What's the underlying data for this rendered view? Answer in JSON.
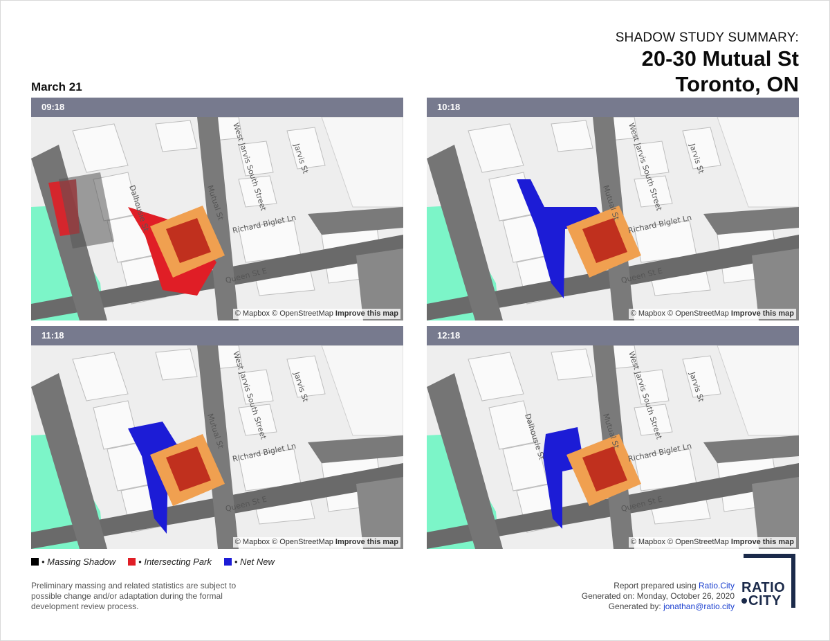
{
  "header": {
    "kicker": "SHADOW STUDY SUMMARY:",
    "title_line1": "20-30 Mutual St",
    "title_line2": "Toronto, ON"
  },
  "date": "March 21",
  "panels": [
    {
      "time": "09:18"
    },
    {
      "time": "10:18"
    },
    {
      "time": "11:18"
    },
    {
      "time": "12:18"
    }
  ],
  "map": {
    "streets": {
      "jarvis": "Jarvis St",
      "west_jarvis": "West Jarvis South Street",
      "mutual": "Mutual St",
      "dalhousie": "Dalhousie St",
      "richard": "Richard Biglet Ln",
      "queen": "Queen St E"
    },
    "attribution": {
      "mapbox": "© Mapbox",
      "osm": "© OpenStreetMap",
      "improve": "Improve this map"
    },
    "colors": {
      "park": "#7cf5c8",
      "building_massing": "#f0a050",
      "building_core": "#c0301e",
      "shadow": "#555555",
      "intersecting_park": "#e01e26",
      "net_new": "#1c1cd6"
    }
  },
  "legend": {
    "items": [
      {
        "label": "• Massing Shadow",
        "color": "#000000"
      },
      {
        "label": "• Intersecting Park",
        "color": "#e01e26"
      },
      {
        "label": "• Net New",
        "color": "#1c1cd6"
      }
    ]
  },
  "disclaimer": "Preliminary massing and related statistics are subject to possible change and/or adaptation during the formal development review process.",
  "report": {
    "prepared_prefix": "Report prepared using",
    "prepared_link": "Ratio.City",
    "generated_on": "Generated on: Monday, October 26, 2020",
    "generated_by_prefix": "Generated by:",
    "generated_by_email": "jonathan@ratio.city"
  },
  "logo": {
    "line1": "RATIO",
    "line2": "CITY"
  }
}
